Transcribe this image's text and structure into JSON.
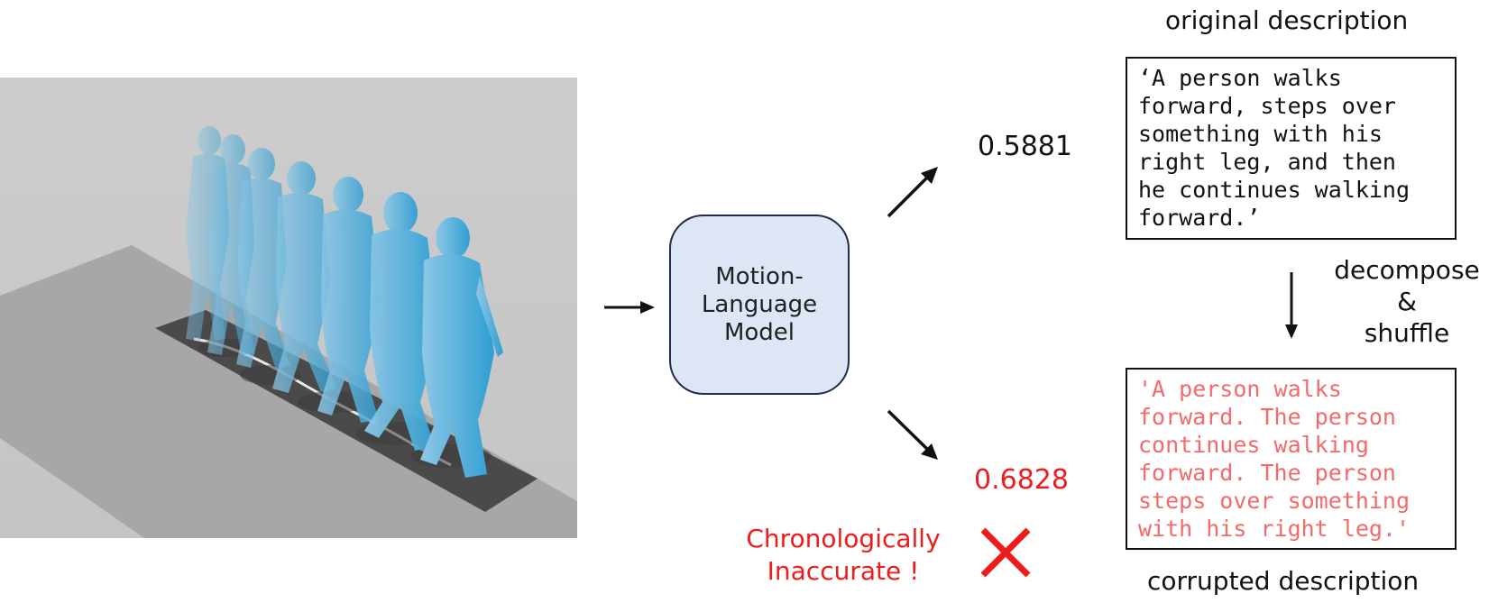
{
  "model": {
    "label": "Motion-\nLanguage\nModel"
  },
  "scores": {
    "original": "0.5881",
    "corrupted": "0.6828"
  },
  "headings": {
    "original": "original description",
    "corrupted": "corrupted description"
  },
  "descriptions": {
    "original": "‘A person walks\nforward, steps over\nsomething with his\nright leg, and then\nhe continues walking\nforward.’",
    "corrupted": "'A person walks\nforward. The person\ncontinues walking\nforward. The person\nsteps over something\nwith his right leg.'"
  },
  "operation": {
    "label": "decompose\n&\nshuffle"
  },
  "verdict": {
    "label": "Chronologically\nInaccurate !",
    "icon": "cross-icon"
  },
  "colors": {
    "model_fill": "#dde6f5",
    "model_border": "#1f2d4a",
    "error": "#ee1c1c",
    "corrupted_text": "#f26a6a",
    "figure": "#3aa6d6"
  }
}
